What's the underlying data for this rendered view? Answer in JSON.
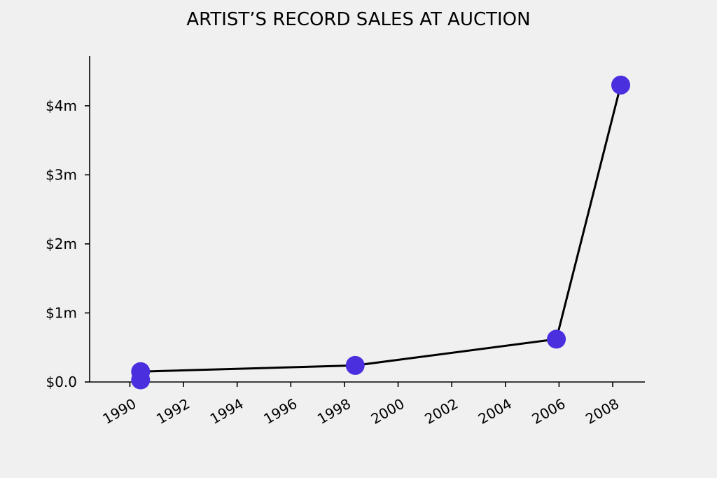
{
  "chart_data": {
    "type": "line",
    "title": "ARTIST’S RECORD SALES AT AUCTION",
    "xlabel": "",
    "ylabel": "",
    "xlim": [
      1988.5,
      2009.2
    ],
    "ylim": [
      0,
      4.72
    ],
    "x_ticks": [
      1990,
      1992,
      1994,
      1996,
      1998,
      2000,
      2002,
      2004,
      2006,
      2008
    ],
    "x_tick_labels": [
      "1990",
      "1992",
      "1994",
      "1996",
      "1998",
      "2000",
      "2002",
      "2004",
      "2006",
      "2008"
    ],
    "y_ticks": [
      0,
      1,
      2,
      3,
      4
    ],
    "y_tick_labels": [
      "$0.0",
      "$1m",
      "$2m",
      "$3m",
      "$4m"
    ],
    "grid": false,
    "series": [
      {
        "x": [
          1990.4,
          1990.4,
          1998.4,
          2005.9,
          2008.3
        ],
        "values": [
          0.03,
          0.15,
          0.24,
          0.62,
          4.3
        ],
        "line_color": "#000000",
        "marker_color": "#4a2fde"
      }
    ]
  }
}
